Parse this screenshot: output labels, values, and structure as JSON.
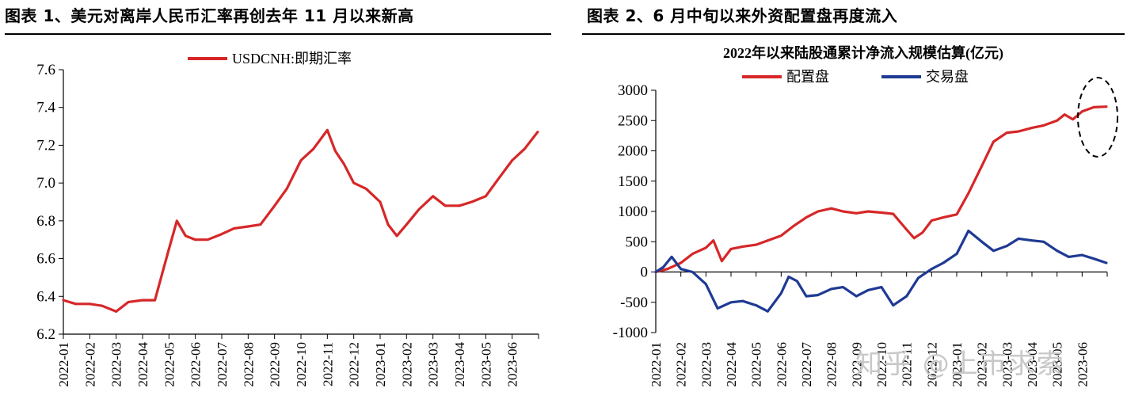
{
  "panel_left": {
    "title": "图表 1、美元对离岸人民币汇率再创去年 11 月以来新高"
  },
  "panel_right": {
    "title": "图表 2、6 月中旬以来外资配置盘再度流入"
  },
  "watermark": "知乎 @上市求索",
  "colors": {
    "red": "#d62728",
    "blue": "#1f3a93"
  },
  "chart_data": [
    {
      "type": "line",
      "title": "",
      "legend": [
        "USDCNH:即期汇率"
      ],
      "legend_position": "top-center",
      "grid": false,
      "ylim": [
        6.2,
        7.6
      ],
      "yticks": [
        "6.2",
        "6.4",
        "6.6",
        "6.8",
        "7.0",
        "7.2",
        "7.4",
        "7.6"
      ],
      "x_categories": [
        "2022-01",
        "2022-02",
        "2022-03",
        "2022-04",
        "2022-05",
        "2022-06",
        "2022-07",
        "2022-08",
        "2022-09",
        "2022-10",
        "2022-11",
        "2022-12",
        "2023-01",
        "2023-02",
        "2023-03",
        "2023-04",
        "2023-05",
        "2023-06"
      ],
      "series": [
        {
          "name": "USDCNH:即期汇率",
          "color": "#d62728",
          "points": [
            [
              "2022-01",
              6.38
            ],
            [
              "2022-01-15",
              6.36
            ],
            [
              "2022-02",
              6.36
            ],
            [
              "2022-02-15",
              6.35
            ],
            [
              "2022-03",
              6.32
            ],
            [
              "2022-03-15",
              6.37
            ],
            [
              "2022-04",
              6.38
            ],
            [
              "2022-04-15",
              6.38
            ],
            [
              "2022-04-25",
              6.55
            ],
            [
              "2022-05",
              6.65
            ],
            [
              "2022-05-10",
              6.8
            ],
            [
              "2022-05-20",
              6.72
            ],
            [
              "2022-06",
              6.7
            ],
            [
              "2022-06-15",
              6.7
            ],
            [
              "2022-07",
              6.73
            ],
            [
              "2022-07-15",
              6.76
            ],
            [
              "2022-08",
              6.77
            ],
            [
              "2022-08-15",
              6.78
            ],
            [
              "2022-09",
              6.88
            ],
            [
              "2022-09-15",
              6.97
            ],
            [
              "2022-10",
              7.12
            ],
            [
              "2022-10-15",
              7.18
            ],
            [
              "2022-11",
              7.28
            ],
            [
              "2022-11-10",
              7.17
            ],
            [
              "2022-11-20",
              7.1
            ],
            [
              "2022-12",
              7.0
            ],
            [
              "2022-12-15",
              6.97
            ],
            [
              "2023-01",
              6.9
            ],
            [
              "2023-01-10",
              6.78
            ],
            [
              "2023-01-20",
              6.72
            ],
            [
              "2023-02",
              6.78
            ],
            [
              "2023-02-15",
              6.86
            ],
            [
              "2023-03",
              6.93
            ],
            [
              "2023-03-15",
              6.88
            ],
            [
              "2023-04",
              6.88
            ],
            [
              "2023-04-15",
              6.9
            ],
            [
              "2023-05",
              6.93
            ],
            [
              "2023-05-15",
              7.02
            ],
            [
              "2023-06",
              7.12
            ],
            [
              "2023-06-15",
              7.18
            ],
            [
              "2023-06-30",
              7.27
            ]
          ]
        }
      ]
    },
    {
      "type": "line",
      "title": "2022年以来陆股通累计净流入规模估算(亿元)",
      "legend": [
        "配置盘",
        "交易盘"
      ],
      "legend_position": "top-center",
      "grid": false,
      "ylim": [
        -1000,
        3000
      ],
      "yticks": [
        "-1000",
        "-500",
        "0",
        "500",
        "1000",
        "1500",
        "2000",
        "2500",
        "3000"
      ],
      "x_categories": [
        "2022-01",
        "2022-02",
        "2022-03",
        "2022-04",
        "2022-05",
        "2022-06",
        "2022-07",
        "2022-08",
        "2022-09",
        "2022-10",
        "2022-11",
        "2022-12",
        "2023-01",
        "2023-02",
        "2023-03",
        "2023-04",
        "2023-05",
        "2023-06"
      ],
      "series": [
        {
          "name": "配置盘",
          "color": "#d62728",
          "points": [
            [
              "2022-01",
              0
            ],
            [
              "2022-01-15",
              50
            ],
            [
              "2022-02",
              150
            ],
            [
              "2022-02-15",
              300
            ],
            [
              "2022-03",
              400
            ],
            [
              "2022-03-10",
              520
            ],
            [
              "2022-03-20",
              180
            ],
            [
              "2022-04",
              380
            ],
            [
              "2022-04-15",
              420
            ],
            [
              "2022-05",
              450
            ],
            [
              "2022-05-15",
              520
            ],
            [
              "2022-06",
              600
            ],
            [
              "2022-06-15",
              750
            ],
            [
              "2022-07",
              900
            ],
            [
              "2022-07-15",
              1000
            ],
            [
              "2022-08",
              1050
            ],
            [
              "2022-08-15",
              1000
            ],
            [
              "2022-09",
              970
            ],
            [
              "2022-09-15",
              1000
            ],
            [
              "2022-10",
              980
            ],
            [
              "2022-10-15",
              960
            ],
            [
              "2022-11",
              700
            ],
            [
              "2022-11-10",
              560
            ],
            [
              "2022-11-20",
              650
            ],
            [
              "2022-12",
              850
            ],
            [
              "2022-12-15",
              900
            ],
            [
              "2023-01",
              950
            ],
            [
              "2023-01-15",
              1300
            ],
            [
              "2023-02",
              1750
            ],
            [
              "2023-02-15",
              2150
            ],
            [
              "2023-03",
              2300
            ],
            [
              "2023-03-15",
              2320
            ],
            [
              "2023-04",
              2380
            ],
            [
              "2023-04-15",
              2420
            ],
            [
              "2023-05",
              2500
            ],
            [
              "2023-05-10",
              2600
            ],
            [
              "2023-05-20",
              2520
            ],
            [
              "2023-06",
              2650
            ],
            [
              "2023-06-15",
              2720
            ],
            [
              "2023-06-30",
              2730
            ]
          ]
        },
        {
          "name": "交易盘",
          "color": "#1f3a93",
          "points": [
            [
              "2022-01",
              0
            ],
            [
              "2022-01-10",
              80
            ],
            [
              "2022-01-20",
              250
            ],
            [
              "2022-02",
              50
            ],
            [
              "2022-02-15",
              0
            ],
            [
              "2022-03",
              -200
            ],
            [
              "2022-03-15",
              -600
            ],
            [
              "2022-04",
              -500
            ],
            [
              "2022-04-15",
              -480
            ],
            [
              "2022-05",
              -550
            ],
            [
              "2022-05-15",
              -650
            ],
            [
              "2022-06",
              -350
            ],
            [
              "2022-06-10",
              -80
            ],
            [
              "2022-06-20",
              -150
            ],
            [
              "2022-07",
              -400
            ],
            [
              "2022-07-15",
              -380
            ],
            [
              "2022-08",
              -280
            ],
            [
              "2022-08-15",
              -250
            ],
            [
              "2022-09",
              -400
            ],
            [
              "2022-09-15",
              -300
            ],
            [
              "2022-10",
              -250
            ],
            [
              "2022-10-15",
              -550
            ],
            [
              "2022-11",
              -400
            ],
            [
              "2022-11-15",
              -100
            ],
            [
              "2022-12",
              50
            ],
            [
              "2022-12-15",
              150
            ],
            [
              "2023-01",
              300
            ],
            [
              "2023-01-15",
              680
            ],
            [
              "2023-02",
              500
            ],
            [
              "2023-02-15",
              350
            ],
            [
              "2023-03",
              430
            ],
            [
              "2023-03-15",
              550
            ],
            [
              "2023-04",
              520
            ],
            [
              "2023-04-15",
              500
            ],
            [
              "2023-05",
              350
            ],
            [
              "2023-05-15",
              250
            ],
            [
              "2023-06",
              280
            ],
            [
              "2023-06-15",
              220
            ],
            [
              "2023-06-30",
              150
            ]
          ]
        }
      ]
    }
  ]
}
